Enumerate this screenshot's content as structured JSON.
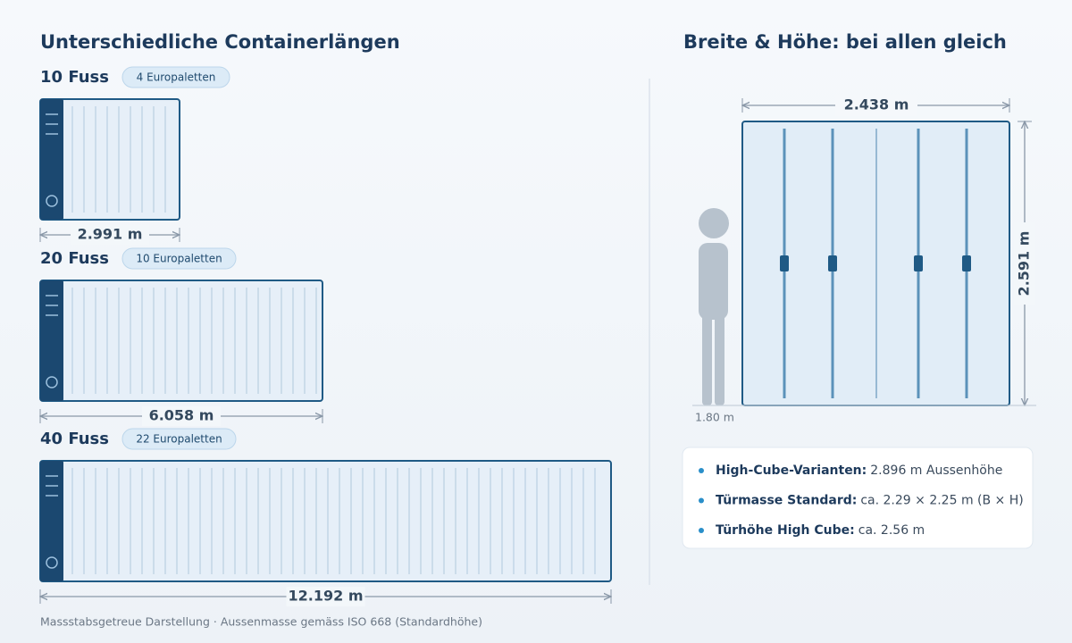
{
  "left": {
    "title": "Unterschiedliche Containerlängen",
    "containers": [
      {
        "name": "10 Fuss",
        "pallets": "4 Europaletten",
        "length": "2.991 m"
      },
      {
        "name": "20 Fuss",
        "pallets": "10 Europaletten",
        "length": "6.058 m"
      },
      {
        "name": "40 Fuss",
        "pallets": "22 Europaletten",
        "length": "12.192 m"
      }
    ]
  },
  "right": {
    "title": "Breite & Höhe: bei allen gleich",
    "width": "2.438 m",
    "height": "2.591 m",
    "person": "1.80 m",
    "notes": [
      {
        "label": "High-Cube-Varianten:",
        "text": "2.896 m Aussenhöhe"
      },
      {
        "label": "Türmasse Standard:",
        "text": "ca. 2.29 × 2.25 m (B × H)"
      },
      {
        "label": "Türhöhe High Cube:",
        "text": "ca. 2.56 m"
      }
    ]
  },
  "footer": "Massstabsgetreue Darstellung · Aussenmasse gemäss ISO 668 (Standardhöhe)"
}
